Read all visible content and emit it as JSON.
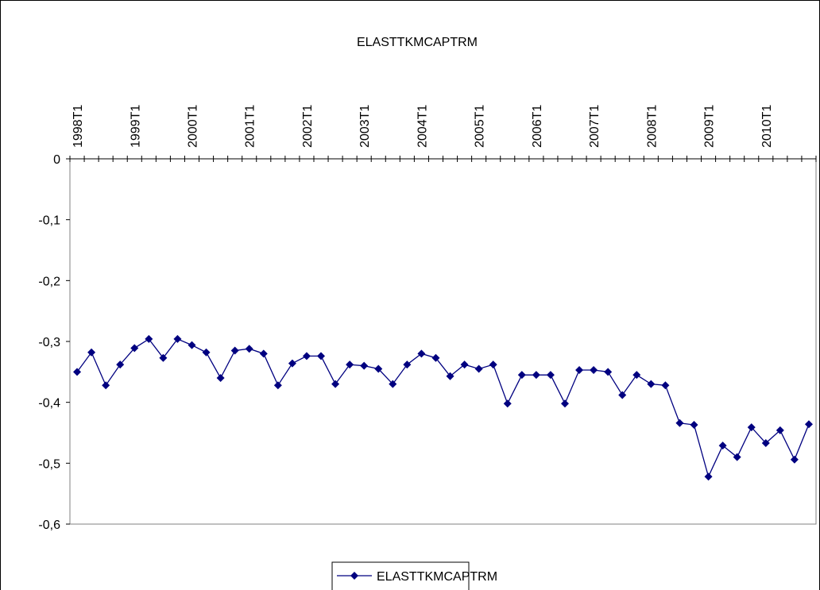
{
  "chart_data": {
    "type": "line",
    "title": "ELASTTKMCAPTRM",
    "categories": [
      "1998T1",
      null,
      null,
      null,
      "1999T1",
      null,
      null,
      null,
      "2000T1",
      null,
      null,
      null,
      "2001T1",
      null,
      null,
      null,
      "2002T1",
      null,
      null,
      null,
      "2003T1",
      null,
      null,
      null,
      "2004T1",
      null,
      null,
      null,
      "2005T1",
      null,
      null,
      null,
      "2006T1",
      null,
      null,
      null,
      "2007T1",
      null,
      null,
      null,
      "2008T1",
      null,
      null,
      null,
      "2009T1",
      null,
      null,
      null,
      "2010T1",
      null,
      null,
      null
    ],
    "series": [
      {
        "name": "ELASTTKMCAPTRM",
        "color": "#000080",
        "values": [
          -0.35,
          -0.318,
          -0.372,
          -0.338,
          -0.311,
          -0.296,
          -0.327,
          -0.296,
          -0.306,
          -0.318,
          -0.36,
          -0.315,
          -0.312,
          -0.32,
          -0.372,
          -0.336,
          -0.324,
          -0.324,
          -0.37,
          -0.338,
          -0.34,
          -0.345,
          -0.37,
          -0.338,
          -0.32,
          -0.327,
          -0.357,
          -0.338,
          -0.345,
          -0.338,
          -0.402,
          -0.355,
          -0.355,
          -0.355,
          -0.402,
          -0.347,
          -0.347,
          -0.35,
          -0.388,
          -0.355,
          -0.37,
          -0.372,
          -0.434,
          -0.437,
          -0.522,
          -0.471,
          -0.49,
          -0.441,
          -0.467,
          -0.446,
          -0.494,
          -0.436
        ]
      }
    ],
    "ylim": [
      -0.6,
      0
    ],
    "yticks": [
      {
        "value": -0.6,
        "label": "-0,6"
      },
      {
        "value": -0.5,
        "label": "-0,5"
      },
      {
        "value": -0.4,
        "label": "-0,4"
      },
      {
        "value": -0.3,
        "label": "-0,3"
      },
      {
        "value": -0.2,
        "label": "-0,2"
      },
      {
        "value": -0.1,
        "label": "-0,1"
      },
      0
    ],
    "grid": false,
    "legend": "bottom"
  }
}
